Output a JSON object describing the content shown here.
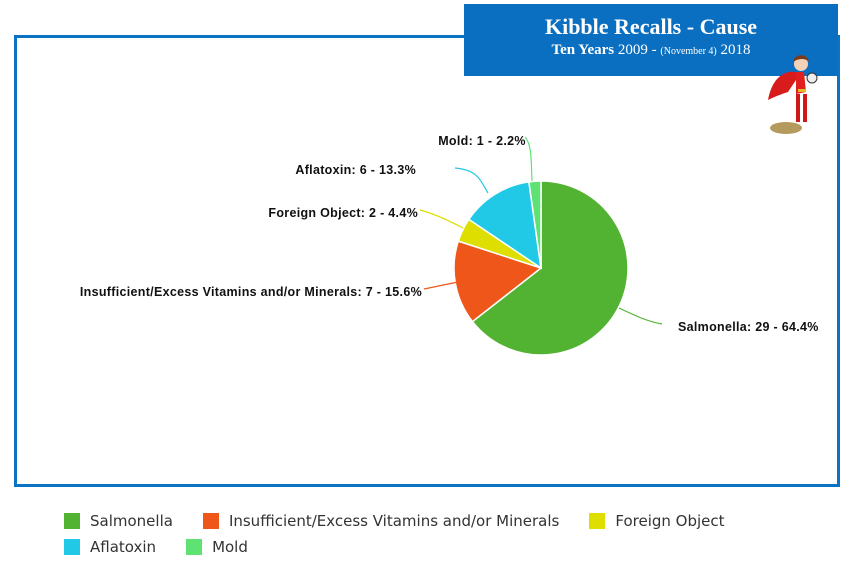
{
  "title": {
    "main": "Kibble Recalls - Cause",
    "sub_bold": "Ten Years",
    "sub_start": "2009 -",
    "sub_small": "(November 4)",
    "sub_end": "2018"
  },
  "colors": {
    "frame": "#0b73c4",
    "title_bg": "#0a6fc0"
  },
  "chart_data": {
    "type": "pie",
    "title": "Kibble Recalls - Cause",
    "subtitle": "Ten Years 2009 - (November 4) 2018",
    "categories": [
      "Salmonella",
      "Insufficient/Excess Vitamins and/or Minerals",
      "Foreign Object",
      "Aflatoxin",
      "Mold"
    ],
    "values": [
      29,
      7,
      2,
      6,
      1
    ],
    "percentages": [
      64.4,
      15.6,
      4.4,
      13.3,
      2.2
    ],
    "colors": [
      "#52b332",
      "#ef561a",
      "#dede00",
      "#22c9e6",
      "#5ee274"
    ],
    "labels": [
      "Salmonella: 29 - 64.4%",
      "Insufficient/Excess Vitamins and/or Minerals: 7 - 15.6%",
      "Foreign Object: 2 - 4.4%",
      "Aflatoxin: 6 - 13.3%",
      "Mold: 1 - 2.2%"
    ],
    "legend_position": "bottom",
    "start_angle": "top, clockwise"
  },
  "legend": {
    "items": [
      {
        "label": "Salmonella",
        "color": "#52b332"
      },
      {
        "label": "Insufficient/Excess Vitamins and/or Minerals",
        "color": "#ef561a"
      },
      {
        "label": "Foreign Object",
        "color": "#dede00"
      },
      {
        "label": "Aflatoxin",
        "color": "#22c9e6"
      },
      {
        "label": "Mold",
        "color": "#5ee274"
      }
    ]
  }
}
